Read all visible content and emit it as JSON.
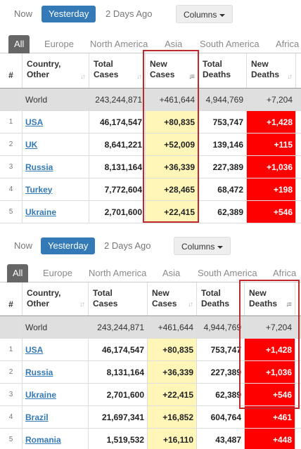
{
  "time_buttons": [
    "Now",
    "Yesterday",
    "2 Days Ago"
  ],
  "columns_button": "Columns",
  "region_tabs": [
    "All",
    "Europe",
    "North America",
    "Asia",
    "South America",
    "Africa"
  ],
  "colors": {
    "accent": "#337ab7",
    "new_cases_bg": "#fff6b8",
    "new_deaths_bg": "#ff0000",
    "highlight": "#c0282c"
  },
  "headers": {
    "hash": "#",
    "country": [
      "Country,",
      "Other"
    ],
    "total_cases": [
      "Total",
      "Cases"
    ],
    "new_cases": [
      "New",
      "Cases"
    ],
    "total_deaths": [
      "Total",
      "Deaths"
    ],
    "new_deaths": [
      "New",
      "Deaths"
    ]
  },
  "world": {
    "name": "World",
    "total_cases": "243,244,871",
    "new_cases": "+461,644",
    "total_deaths": "4,944,769",
    "new_deaths": "+7,204"
  },
  "table1_rows": [
    {
      "idx": "1",
      "country": "USA",
      "total_cases": "46,174,547",
      "new_cases": "+80,835",
      "total_deaths": "753,747",
      "new_deaths": "+1,428"
    },
    {
      "idx": "2",
      "country": "UK",
      "total_cases": "8,641,221",
      "new_cases": "+52,009",
      "total_deaths": "139,146",
      "new_deaths": "+115"
    },
    {
      "idx": "3",
      "country": "Russia",
      "total_cases": "8,131,164",
      "new_cases": "+36,339",
      "total_deaths": "227,389",
      "new_deaths": "+1,036"
    },
    {
      "idx": "4",
      "country": "Turkey",
      "total_cases": "7,772,604",
      "new_cases": "+28,465",
      "total_deaths": "68,472",
      "new_deaths": "+198"
    },
    {
      "idx": "5",
      "country": "Ukraine",
      "total_cases": "2,701,600",
      "new_cases": "+22,415",
      "total_deaths": "62,389",
      "new_deaths": "+546"
    }
  ],
  "table2_rows": [
    {
      "idx": "1",
      "country": "USA",
      "total_cases": "46,174,547",
      "new_cases": "+80,835",
      "total_deaths": "753,747",
      "new_deaths": "+1,428"
    },
    {
      "idx": "2",
      "country": "Russia",
      "total_cases": "8,131,164",
      "new_cases": "+36,339",
      "total_deaths": "227,389",
      "new_deaths": "+1,036"
    },
    {
      "idx": "3",
      "country": "Ukraine",
      "total_cases": "2,701,600",
      "new_cases": "+22,415",
      "total_deaths": "62,389",
      "new_deaths": "+546"
    },
    {
      "idx": "4",
      "country": "Brazil",
      "total_cases": "21,697,341",
      "new_cases": "+16,852",
      "total_deaths": "604,764",
      "new_deaths": "+461"
    },
    {
      "idx": "5",
      "country": "Romania",
      "total_cases": "1,519,532",
      "new_cases": "+16,110",
      "total_deaths": "43,487",
      "new_deaths": "+448"
    }
  ]
}
